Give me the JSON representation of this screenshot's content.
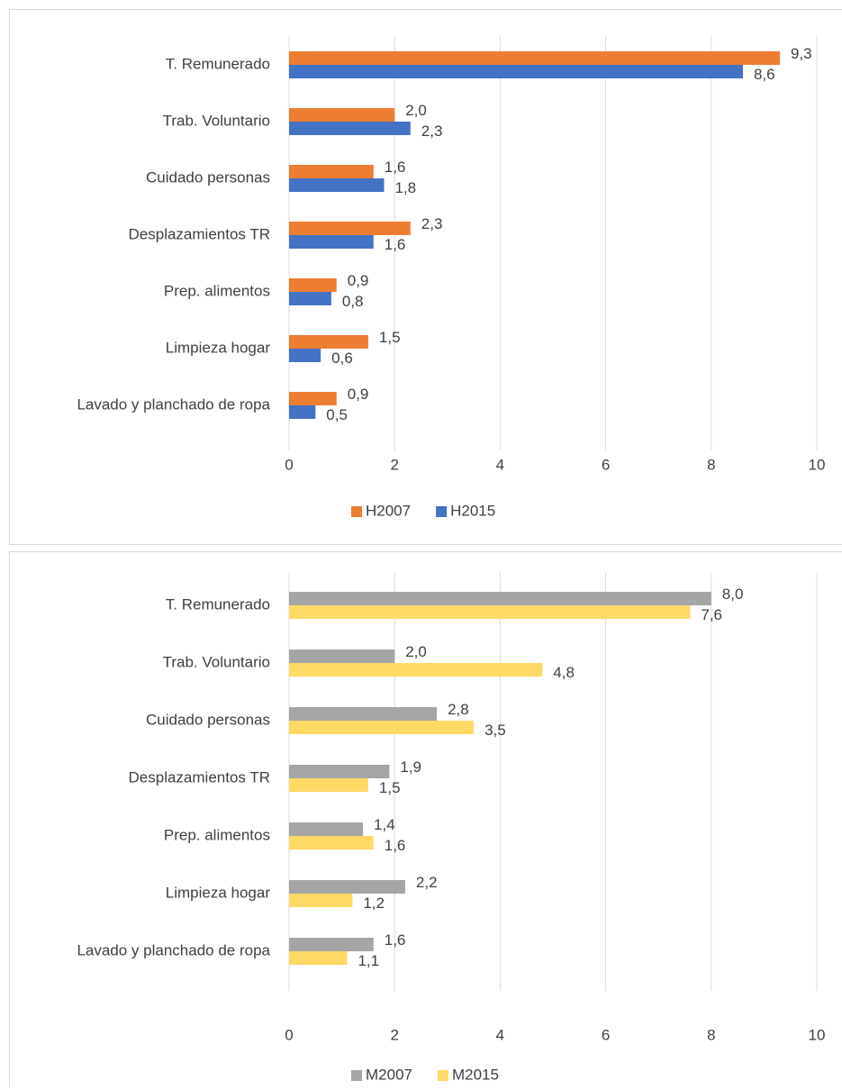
{
  "chart_data": [
    {
      "type": "bar",
      "categories": [
        "T. Remunerado",
        "Trab. Voluntario",
        "Cuidado personas",
        "Desplazamientos TR",
        "Prep. alimentos",
        "Limpieza hogar",
        "Lavado y planchado de ropa"
      ],
      "series": [
        {
          "name": "H2007",
          "color": "#ed7d31",
          "values": [
            9.3,
            2.0,
            1.6,
            2.3,
            0.9,
            1.5,
            0.9
          ],
          "value_labels": [
            "9,3",
            "2,0",
            "1,6",
            "2,3",
            "0,9",
            "1,5",
            "0,9"
          ]
        },
        {
          "name": "H2015",
          "color": "#4472c4",
          "values": [
            8.6,
            2.3,
            1.8,
            1.6,
            0.8,
            0.6,
            0.5
          ],
          "value_labels": [
            "8,6",
            "2,3",
            "1,8",
            "1,6",
            "0,8",
            "0,6",
            "0,5"
          ]
        }
      ],
      "xlim": [
        0,
        10
      ],
      "xticks": [
        0,
        2,
        4,
        6,
        8,
        10
      ],
      "grid": true,
      "legend": "bottom"
    },
    {
      "type": "bar",
      "categories": [
        "T. Remunerado",
        "Trab. Voluntario",
        "Cuidado personas",
        "Desplazamientos TR",
        "Prep. alimentos",
        "Limpieza hogar",
        "Lavado y planchado de ropa"
      ],
      "series": [
        {
          "name": "M2007",
          "color": "#a5a5a5",
          "values": [
            8.0,
            2.0,
            2.8,
            1.9,
            1.4,
            2.2,
            1.6
          ],
          "value_labels": [
            "8,0",
            "2,0",
            "2,8",
            "1,9",
            "1,4",
            "2,2",
            "1,6"
          ]
        },
        {
          "name": "M2015",
          "color": "#ffd966",
          "values": [
            7.6,
            4.8,
            3.5,
            1.5,
            1.6,
            1.2,
            1.1
          ],
          "value_labels": [
            "7,6",
            "4,8",
            "3,5",
            "1,5",
            "1,6",
            "1,2",
            "1,1"
          ]
        }
      ],
      "xlim": [
        0,
        10
      ],
      "xticks": [
        0,
        2,
        4,
        6,
        8,
        10
      ],
      "grid": true,
      "legend": "bottom"
    }
  ]
}
